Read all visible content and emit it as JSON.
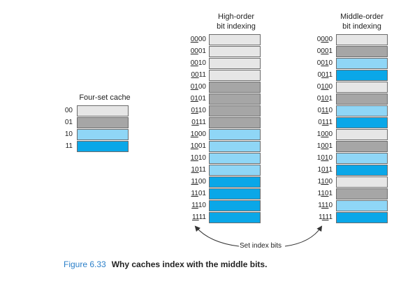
{
  "four_set_cache": {
    "title": "Four-set cache",
    "sets": [
      {
        "label": "00",
        "color": "#e6e6e6"
      },
      {
        "label": "01",
        "color": "#a6a6a6"
      },
      {
        "label": "10",
        "color": "#8fd6f6"
      },
      {
        "label": "11",
        "color": "#0aa7e8"
      }
    ]
  },
  "high_order": {
    "title_line1": "High-order",
    "title_line2": "bit indexing",
    "rows": [
      {
        "pre": "",
        "idx": "00",
        "post": "00",
        "color": "#e6e6e6"
      },
      {
        "pre": "",
        "idx": "00",
        "post": "01",
        "color": "#e6e6e6"
      },
      {
        "pre": "",
        "idx": "00",
        "post": "10",
        "color": "#e6e6e6"
      },
      {
        "pre": "",
        "idx": "00",
        "post": "11",
        "color": "#e6e6e6"
      },
      {
        "pre": "",
        "idx": "01",
        "post": "00",
        "color": "#a6a6a6"
      },
      {
        "pre": "",
        "idx": "01",
        "post": "01",
        "color": "#a6a6a6"
      },
      {
        "pre": "",
        "idx": "01",
        "post": "10",
        "color": "#a6a6a6"
      },
      {
        "pre": "",
        "idx": "01",
        "post": "11",
        "color": "#a6a6a6"
      },
      {
        "pre": "",
        "idx": "10",
        "post": "00",
        "color": "#8fd6f6"
      },
      {
        "pre": "",
        "idx": "10",
        "post": "01",
        "color": "#8fd6f6"
      },
      {
        "pre": "",
        "idx": "10",
        "post": "10",
        "color": "#8fd6f6"
      },
      {
        "pre": "",
        "idx": "10",
        "post": "11",
        "color": "#8fd6f6"
      },
      {
        "pre": "",
        "idx": "11",
        "post": "00",
        "color": "#0aa7e8"
      },
      {
        "pre": "",
        "idx": "11",
        "post": "01",
        "color": "#0aa7e8"
      },
      {
        "pre": "",
        "idx": "11",
        "post": "10",
        "color": "#0aa7e8"
      },
      {
        "pre": "",
        "idx": "11",
        "post": "11",
        "color": "#0aa7e8"
      }
    ]
  },
  "middle_order": {
    "title_line1": "Middle-order",
    "title_line2": "bit indexing",
    "rows": [
      {
        "pre": "0",
        "idx": "00",
        "post": "0",
        "color": "#e6e6e6"
      },
      {
        "pre": "0",
        "idx": "00",
        "post": "1",
        "color": "#a6a6a6"
      },
      {
        "pre": "0",
        "idx": "01",
        "post": "0",
        "color": "#8fd6f6"
      },
      {
        "pre": "0",
        "idx": "01",
        "post": "1",
        "color": "#0aa7e8"
      },
      {
        "pre": "0",
        "idx": "10",
        "post": "0",
        "color": "#e6e6e6"
      },
      {
        "pre": "0",
        "idx": "10",
        "post": "1",
        "color": "#a6a6a6"
      },
      {
        "pre": "0",
        "idx": "11",
        "post": "0",
        "color": "#8fd6f6"
      },
      {
        "pre": "0",
        "idx": "11",
        "post": "1",
        "color": "#0aa7e8"
      },
      {
        "pre": "1",
        "idx": "00",
        "post": "0",
        "color": "#e6e6e6"
      },
      {
        "pre": "1",
        "idx": "00",
        "post": "1",
        "color": "#a6a6a6"
      },
      {
        "pre": "1",
        "idx": "01",
        "post": "0",
        "color": "#8fd6f6"
      },
      {
        "pre": "1",
        "idx": "01",
        "post": "1",
        "color": "#0aa7e8"
      },
      {
        "pre": "1",
        "idx": "10",
        "post": "0",
        "color": "#e6e6e6"
      },
      {
        "pre": "1",
        "idx": "10",
        "post": "1",
        "color": "#a6a6a6"
      },
      {
        "pre": "1",
        "idx": "11",
        "post": "0",
        "color": "#8fd6f6"
      },
      {
        "pre": "1",
        "idx": "11",
        "post": "1",
        "color": "#0aa7e8"
      }
    ]
  },
  "set_index_bits_label": "Set index bits",
  "caption": {
    "number": "Figure 6.33",
    "text": "Why caches index with the middle bits."
  }
}
